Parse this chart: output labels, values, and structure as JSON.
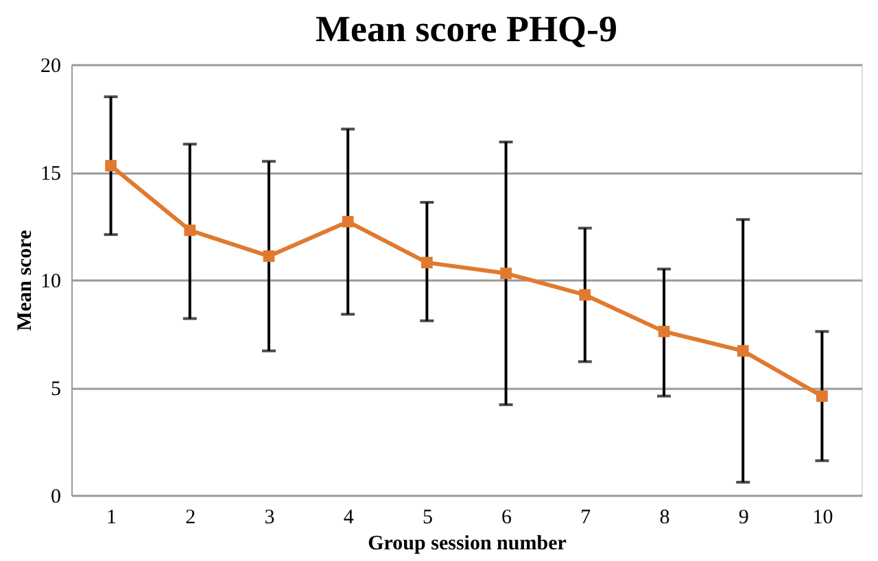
{
  "chart_data": {
    "type": "line",
    "title": "Mean score PHQ-9",
    "xlabel": "Group session number",
    "ylabel": "Mean score",
    "categories": [
      "1",
      "2",
      "3",
      "4",
      "5",
      "6",
      "7",
      "8",
      "9",
      "10"
    ],
    "series": [
      {
        "color": "#e07a30",
        "values": [
          15.3,
          12.3,
          11.1,
          12.7,
          10.8,
          10.3,
          9.3,
          7.6,
          6.7,
          4.6
        ],
        "errors": [
          [
            12.1,
            18.5
          ],
          [
            8.2,
            16.3
          ],
          [
            6.7,
            15.5
          ],
          [
            8.4,
            17.0
          ],
          [
            8.1,
            13.6
          ],
          [
            4.2,
            16.4
          ],
          [
            6.2,
            12.4
          ],
          [
            4.6,
            10.5
          ],
          [
            0.6,
            12.8
          ],
          [
            1.6,
            7.6
          ]
        ]
      }
    ],
    "ylim": [
      0,
      20
    ],
    "yticks": [
      0,
      5,
      10,
      15,
      20
    ],
    "grid": "y",
    "marker": "square",
    "line_style": "solid"
  }
}
